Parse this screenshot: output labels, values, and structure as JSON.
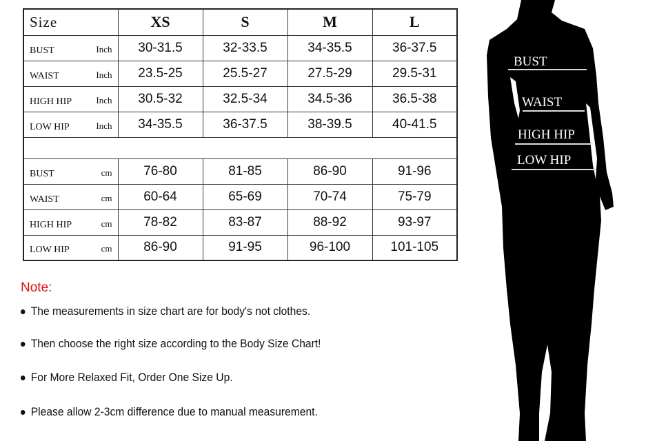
{
  "table": {
    "size_label": "Size",
    "sizes": [
      "XS",
      "S",
      "M",
      "L"
    ],
    "inch_rows": [
      {
        "name": "BUST",
        "unit": "Inch",
        "values": [
          "30-31.5",
          "32-33.5",
          "34-35.5",
          "36-37.5"
        ]
      },
      {
        "name": "WAIST",
        "unit": "Inch",
        "values": [
          "23.5-25",
          "25.5-27",
          "27.5-29",
          "29.5-31"
        ]
      },
      {
        "name": "HIGH HIP",
        "unit": "Inch",
        "values": [
          "30.5-32",
          "32.5-34",
          "34.5-36",
          "36.5-38"
        ]
      },
      {
        "name": "LOW HIP",
        "unit": "Inch",
        "values": [
          "34-35.5",
          "36-37.5",
          "38-39.5",
          "40-41.5"
        ]
      }
    ],
    "cm_rows": [
      {
        "name": "BUST",
        "unit": "cm",
        "values": [
          "76-80",
          "81-85",
          "86-90",
          "91-96"
        ]
      },
      {
        "name": "WAIST",
        "unit": "cm",
        "values": [
          "60-64",
          "65-69",
          "70-74",
          "75-79"
        ]
      },
      {
        "name": "HIGH HIP",
        "unit": "cm",
        "values": [
          "78-82",
          "83-87",
          "88-92",
          "93-97"
        ]
      },
      {
        "name": "LOW HIP",
        "unit": "cm",
        "values": [
          "86-90",
          "91-95",
          "96-100",
          "101-105"
        ]
      }
    ]
  },
  "note": {
    "title": "Note:",
    "title_color": "#e01010",
    "items": [
      "The measurements in size chart are for body's not clothes.",
      "Then choose the right size according to the Body Size Chart!",
      "For More Relaxed Fit, Order One Size Up.",
      "Please allow 2-3cm difference due to manual measurement."
    ]
  },
  "figure": {
    "labels": [
      "BUST",
      "WAIST",
      "HIGH HIP",
      "LOW HIP"
    ]
  }
}
